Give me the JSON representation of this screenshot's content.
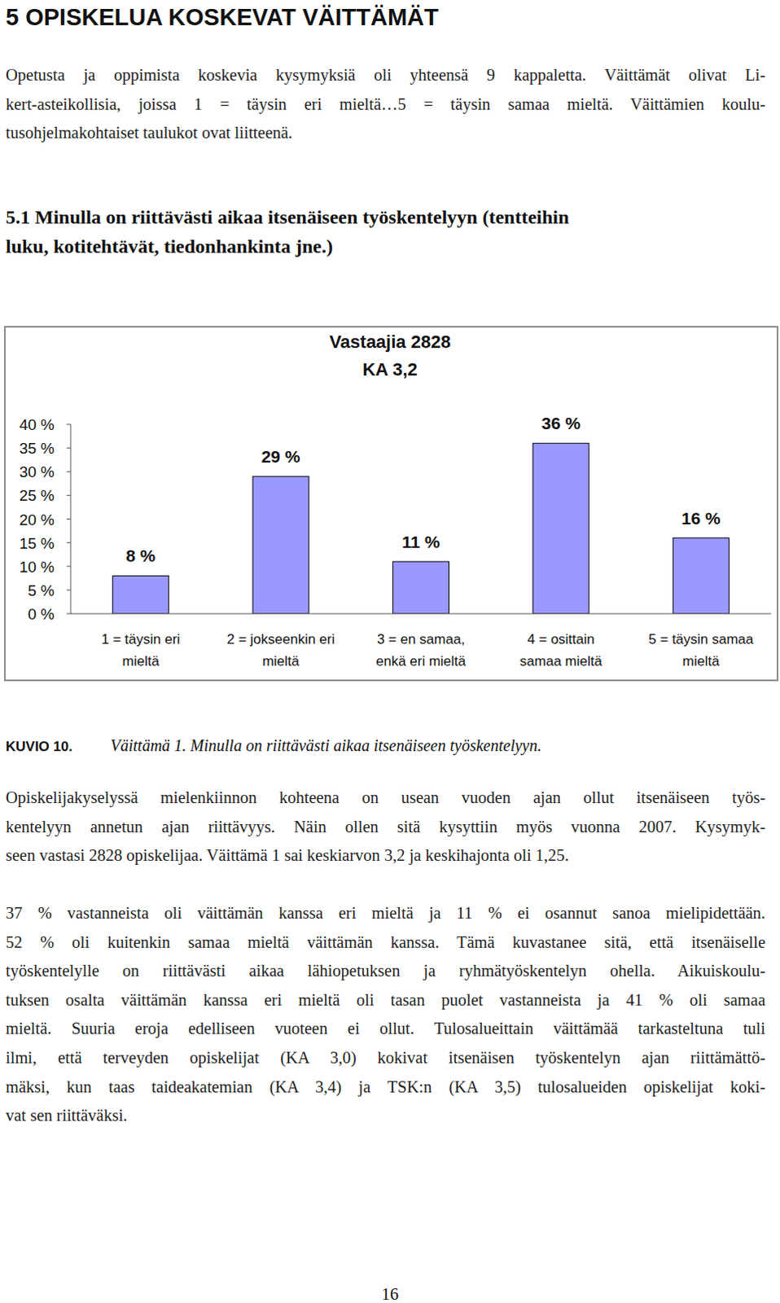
{
  "page": {
    "heading": "5 OPISKELUA KOSKEVAT VÄITTÄMÄT",
    "intro": [
      "Opetusta ja oppimista koskevia kysymyksiä oli yhteensä 9 kappaletta. Väittämät olivat Li-",
      "kert-asteikollisia, joissa 1 = täysin eri mieltä…5 = täysin samaa mieltä. Väittämien koulu-",
      "tusohjelmakohtaiset taulukot ovat liitteenä."
    ],
    "section_title": [
      "5.1 Minulla on riittävästi aikaa itsenäiseen työskentelyyn (tentteihin",
      "luku, kotitehtävät, tiedonhankinta jne.)"
    ],
    "caption": {
      "label": "KUVIO 10.",
      "text": "Väittämä 1. Minulla on riittävästi aikaa itsenäiseen työskentelyyn."
    },
    "paragraphs": [
      [
        "Opiskelijakyselyssä mielenkiinnon kohteena on usean vuoden ajan ollut itsenäiseen työs-",
        "kentelyyn annetun ajan riittävyys. Näin ollen sitä kysyttiin myös vuonna 2007. Kysymyk-",
        "seen vastasi 2828 opiskelijaa. Väittämä 1 sai keskiarvon 3,2 ja keskihajonta oli 1,25."
      ],
      [
        "37 % vastanneista oli väittämän kanssa eri mieltä ja 11 % ei osannut sanoa mielipidettään.",
        "52 % oli kuitenkin samaa mieltä väittämän kanssa. Tämä kuvastanee sitä, että itsenäiselle",
        "työskentelylle on riittävästi aikaa lähiopetuksen ja ryhmätyöskentelyn ohella. Aikuiskoulu-",
        "tuksen osalta väittämän kanssa eri mieltä oli tasan puolet vastanneista ja 41 % oli samaa",
        "mieltä. Suuria eroja edelliseen vuoteen ei ollut. Tulosalueittain väittämää tarkasteltuna tuli",
        "ilmi, että terveyden opiskelijat (KA 3,0) kokivat itsenäisen työskentelyn ajan riittämättö-",
        "mäksi, kun taas taideakatemian (KA 3,4) ja TSK:n (KA 3,5) tulosalueiden opiskelijat koki-",
        "vat sen riittäväksi."
      ]
    ],
    "page_number": "16"
  },
  "chart_data": {
    "type": "bar",
    "title": "Vastaajia 2828",
    "subtitle": "KA 3,2",
    "categories": [
      "1 = täysin eri\nmieltä",
      "2 = jokseenkin eri\nmieltä",
      "3 = en samaa,\nenkä eri mieltä",
      "4 = osittain\nsamaa mieltä",
      "5 = täysin samaa\nmieltä"
    ],
    "values": [
      8,
      29,
      11,
      36,
      16
    ],
    "value_labels": [
      "8 %",
      "29 %",
      "11 %",
      "36 %",
      "16 %"
    ],
    "data_labels": true,
    "color": "#9999ff",
    "grid": false,
    "ylim": [
      0,
      40
    ],
    "yticks": [
      {
        "value": 0,
        "label": "0 %"
      },
      {
        "value": 5,
        "label": "5 %"
      },
      {
        "value": 10,
        "label": "10 %"
      },
      {
        "value": 15,
        "label": "15 %"
      },
      {
        "value": 20,
        "label": "20 %"
      },
      {
        "value": 25,
        "label": "25 %"
      },
      {
        "value": 30,
        "label": "30 %"
      },
      {
        "value": 35,
        "label": "35 %"
      },
      {
        "value": 40,
        "label": "40 %"
      }
    ]
  }
}
